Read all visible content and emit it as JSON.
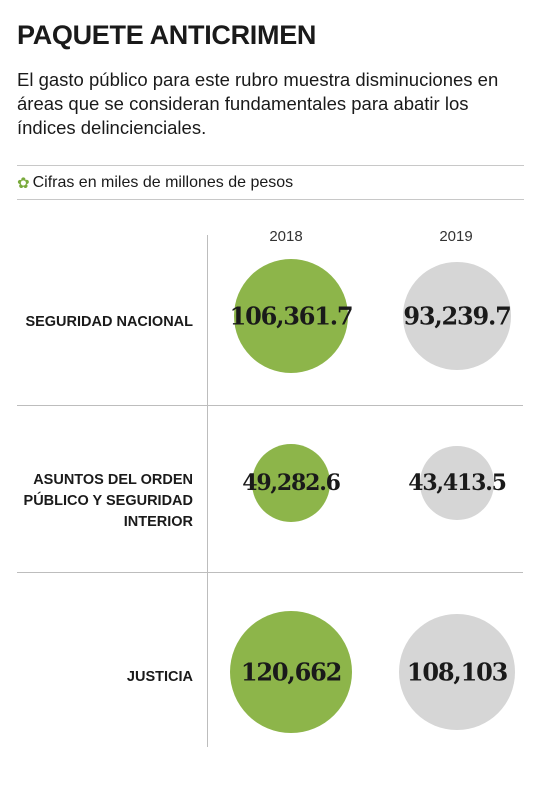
{
  "header": {
    "title": "PAQUETE ANTICRIMEN",
    "subtitle": "El gasto público para este rubro muestra disminuciones en áreas que se consideran fundamentales para abatir los índices delinciencia­les.",
    "note": "Cifras en miles de millones de pesos",
    "note_icon": "asterisk-icon"
  },
  "chart_data": {
    "type": "bubble",
    "columns": [
      "2018",
      "2019"
    ],
    "rows": [
      {
        "label": "SEGURIDAD NACIONAL",
        "values": [
          106361.7,
          93239.7
        ],
        "labels": [
          "106,361.7",
          "93,239.7"
        ]
      },
      {
        "label": "ASUNTOS DEL ORDEN PÚBLICO Y SEGURIDAD INTERIOR",
        "values": [
          49282.6,
          43413.5
        ],
        "labels": [
          "49,282.6",
          "43,413.5"
        ]
      },
      {
        "label": "JUSTICIA",
        "values": [
          120662,
          108103
        ],
        "labels": [
          "120,662",
          "108,103"
        ]
      }
    ],
    "colors": {
      "2018": "#8db54a",
      "2019": "#d6d6d6"
    }
  }
}
